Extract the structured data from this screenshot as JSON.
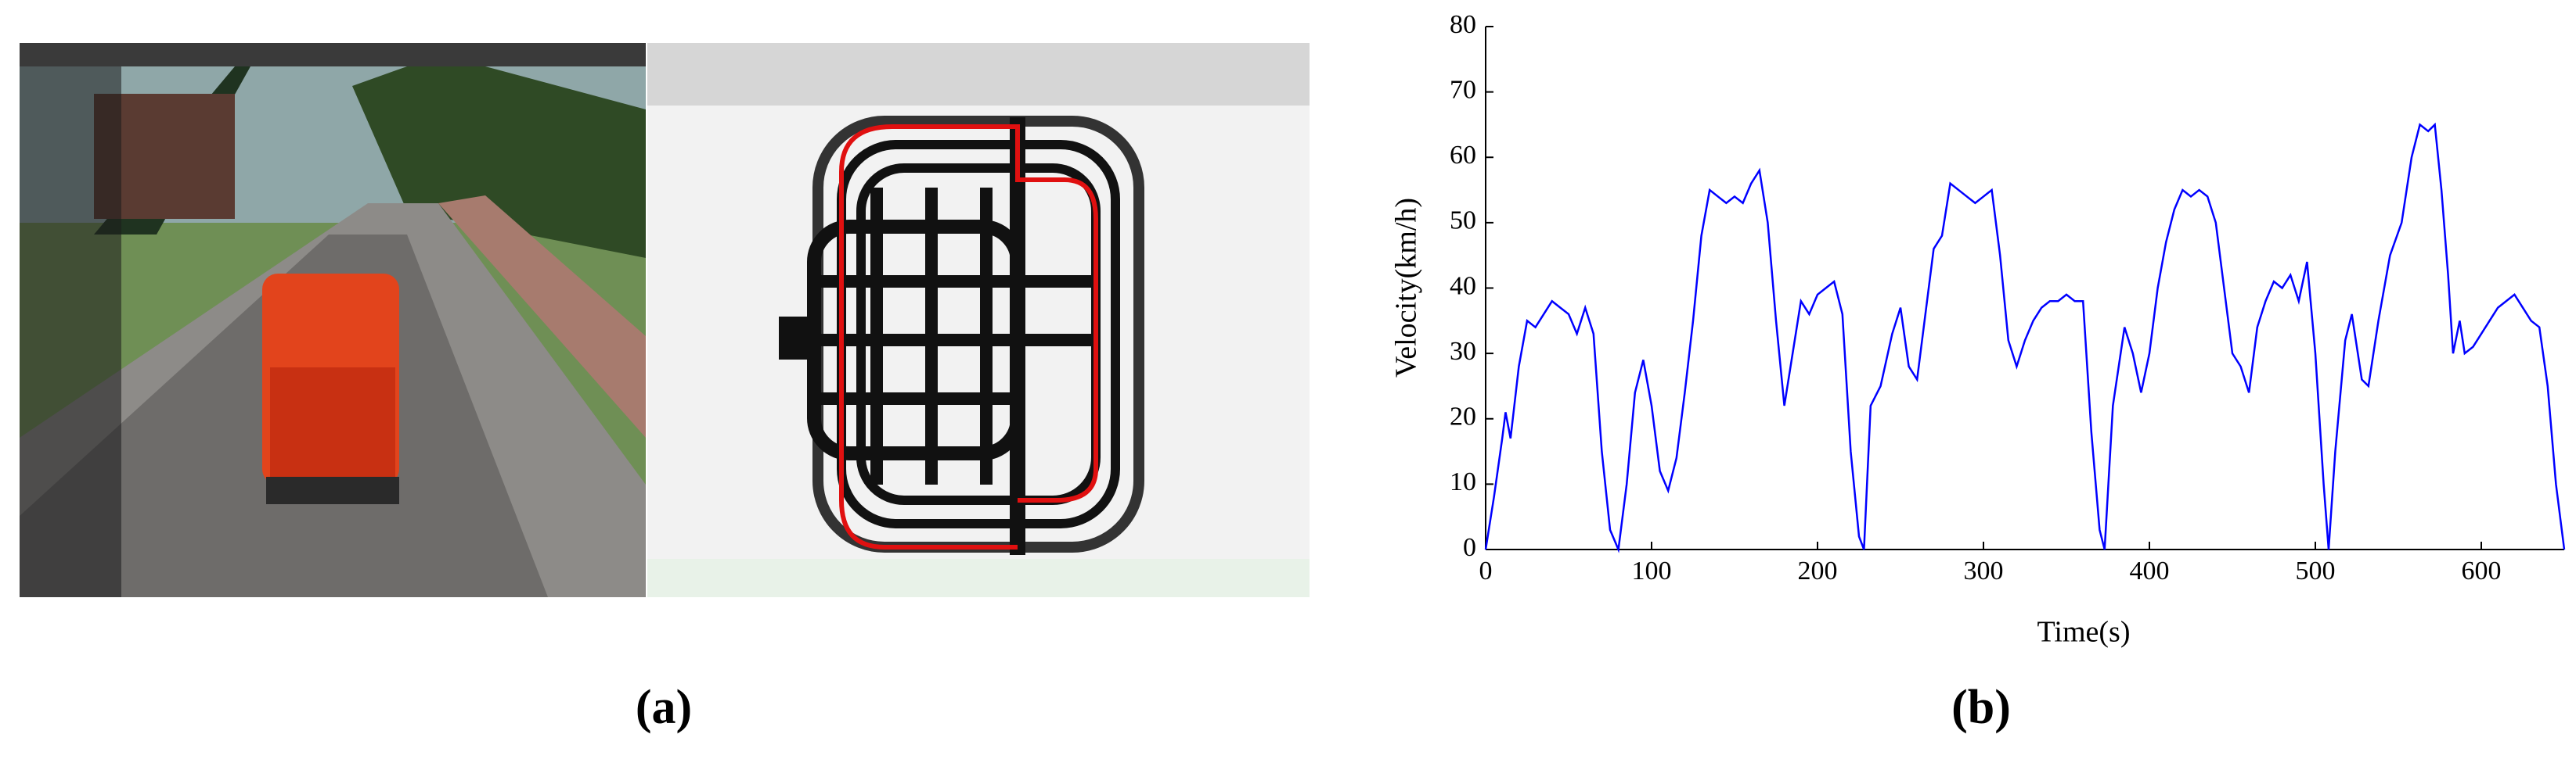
{
  "panel_labels": [
    "(a)",
    "(b)"
  ],
  "chart_data": {
    "type": "line",
    "xlabel": "Time(s)",
    "ylabel": "Velocity(km/h)",
    "xlim": [
      0,
      650
    ],
    "xticks": [
      0,
      100,
      200,
      300,
      400,
      500,
      600
    ],
    "ylim": [
      0,
      80
    ],
    "yticks": [
      0,
      10,
      20,
      30,
      40,
      50,
      60,
      70,
      80
    ],
    "series": [
      {
        "color": "#0000ff",
        "x": [
          0,
          5,
          10,
          12,
          15,
          20,
          25,
          30,
          35,
          40,
          45,
          50,
          55,
          60,
          65,
          70,
          75,
          80,
          85,
          90,
          95,
          100,
          105,
          110,
          115,
          120,
          125,
          130,
          135,
          140,
          145,
          150,
          155,
          160,
          165,
          170,
          175,
          180,
          185,
          190,
          195,
          200,
          205,
          210,
          215,
          220,
          225,
          228,
          232,
          238,
          245,
          250,
          255,
          260,
          265,
          270,
          275,
          280,
          285,
          290,
          295,
          300,
          305,
          310,
          315,
          320,
          325,
          330,
          335,
          340,
          345,
          350,
          355,
          360,
          365,
          370,
          373,
          378,
          385,
          390,
          395,
          400,
          405,
          410,
          415,
          420,
          425,
          430,
          435,
          440,
          445,
          450,
          455,
          460,
          465,
          470,
          475,
          480,
          485,
          490,
          495,
          500,
          505,
          508,
          512,
          518,
          522,
          528,
          532,
          538,
          545,
          552,
          558,
          563,
          568,
          572,
          576,
          580,
          583,
          587,
          590,
          595,
          600,
          605,
          610,
          615,
          620,
          625,
          630,
          635,
          640,
          645,
          650
        ],
        "values": [
          0,
          8,
          17,
          21,
          17,
          28,
          35,
          34,
          36,
          38,
          37,
          36,
          33,
          37,
          33,
          15,
          3,
          0,
          10,
          24,
          29,
          22,
          12,
          9,
          14,
          24,
          35,
          48,
          55,
          54,
          53,
          54,
          53,
          56,
          58,
          50,
          35,
          22,
          30,
          38,
          36,
          39,
          40,
          41,
          36,
          15,
          2,
          0,
          22,
          25,
          33,
          37,
          28,
          26,
          36,
          46,
          48,
          56,
          55,
          54,
          53,
          54,
          55,
          45,
          32,
          28,
          32,
          35,
          37,
          38,
          38,
          39,
          38,
          38,
          18,
          3,
          0,
          22,
          34,
          30,
          24,
          30,
          40,
          47,
          52,
          55,
          54,
          55,
          54,
          50,
          40,
          30,
          28,
          24,
          34,
          38,
          41,
          40,
          42,
          38,
          44,
          30,
          10,
          0,
          15,
          32,
          36,
          26,
          25,
          35,
          45,
          50,
          60,
          65,
          64,
          65,
          55,
          42,
          30,
          35,
          30,
          31,
          33,
          35,
          37,
          38,
          39,
          37,
          35,
          34,
          25,
          10,
          0
        ]
      }
    ]
  }
}
